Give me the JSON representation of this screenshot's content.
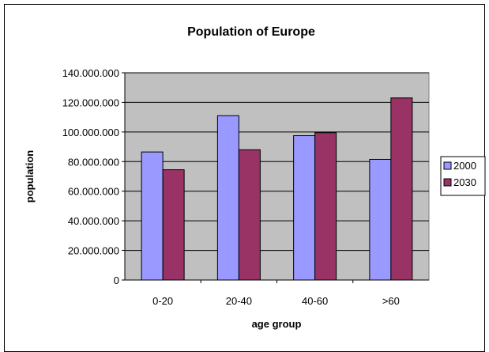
{
  "chart_data": {
    "type": "bar",
    "title": "Population of Europe",
    "xlabel": "age group",
    "ylabel": "population",
    "categories": [
      "0-20",
      "20-40",
      "40-60",
      ">60"
    ],
    "series": [
      {
        "name": "2000",
        "color": "#9999ff",
        "values": [
          86500000,
          111000000,
          97500000,
          81500000
        ]
      },
      {
        "name": "2030",
        "color": "#993366",
        "values": [
          74500000,
          88000000,
          99500000,
          123000000
        ]
      }
    ],
    "ylim": [
      0,
      140000000
    ],
    "ytick_values": [
      0,
      20000000,
      40000000,
      60000000,
      80000000,
      100000000,
      120000000,
      140000000
    ],
    "yticks": [
      "0",
      "20.000.000",
      "40.000.000",
      "60.000.000",
      "80.000.000",
      "100.000.000",
      "120.000.000",
      "140.000.000"
    ],
    "plot_background": "#c0c0c0",
    "grid": true,
    "legend": "right"
  }
}
